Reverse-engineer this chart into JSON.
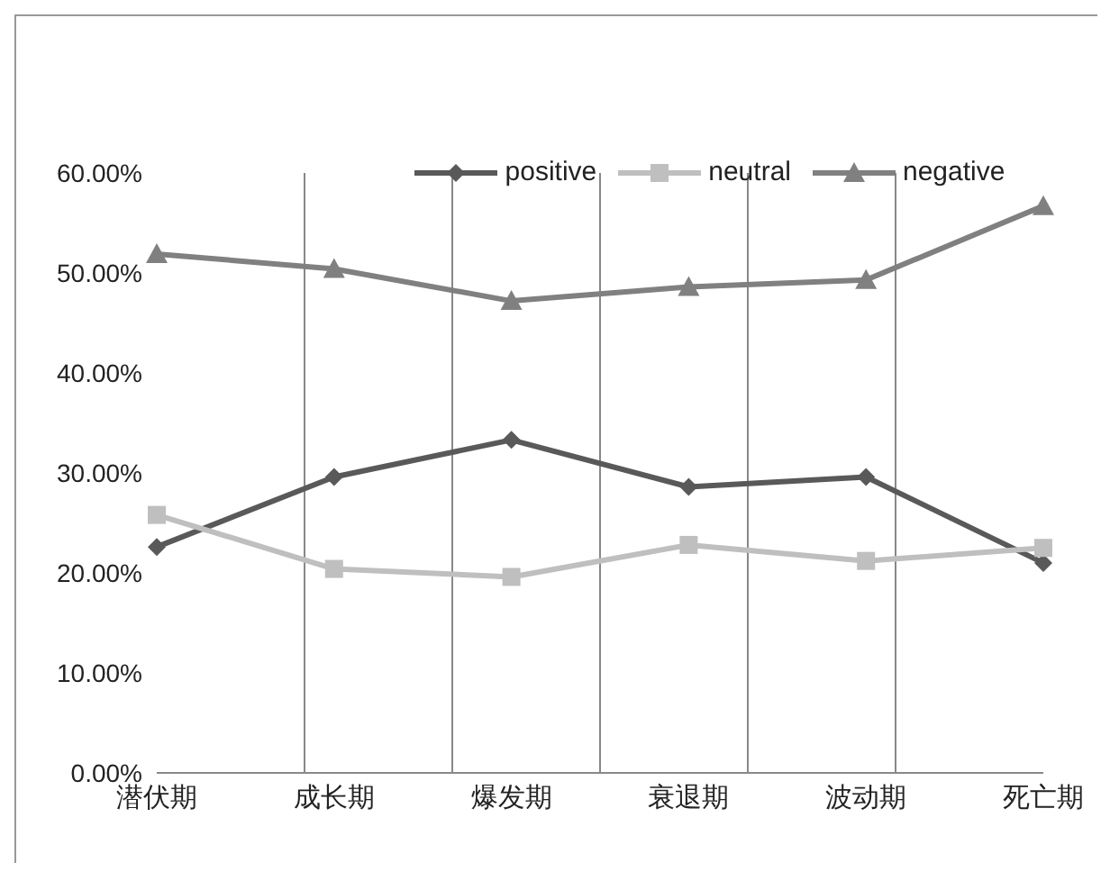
{
  "chart_data": {
    "type": "line",
    "categories": [
      "潜伏期",
      "成长期",
      "爆发期",
      "衰退期",
      "波动期",
      "死亡期"
    ],
    "series": [
      {
        "name": "positive",
        "color": "#595959",
        "marker": "diamond",
        "values": [
          22.6,
          29.6,
          33.3,
          28.6,
          29.6,
          21.0
        ]
      },
      {
        "name": "neutral",
        "color": "#bfbfbf",
        "marker": "square",
        "values": [
          25.8,
          20.4,
          19.6,
          22.8,
          21.2,
          22.5
        ]
      },
      {
        "name": "negative",
        "color": "#808080",
        "marker": "triangle",
        "values": [
          51.9,
          50.4,
          47.2,
          48.6,
          49.3,
          56.7
        ]
      }
    ],
    "ylim": [
      0,
      60
    ],
    "yticks": [
      {
        "value": 0,
        "label": "0.00%"
      },
      {
        "value": 10,
        "label": "10.00%"
      },
      {
        "value": 20,
        "label": "20.00%"
      },
      {
        "value": 30,
        "label": "30.00%"
      },
      {
        "value": 40,
        "label": "40.00%"
      },
      {
        "value": 50,
        "label": "50.00%"
      },
      {
        "value": 60,
        "label": "60.00%"
      }
    ],
    "grid": "x",
    "legend": "top"
  }
}
